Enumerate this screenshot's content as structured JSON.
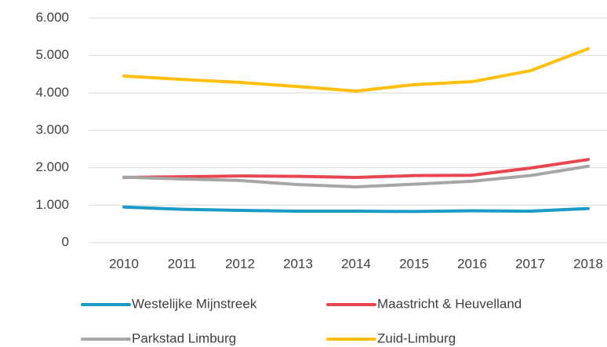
{
  "chart_data": {
    "type": "line",
    "categories": [
      "2010",
      "2011",
      "2012",
      "2013",
      "2014",
      "2015",
      "2016",
      "2017",
      "2018"
    ],
    "series": [
      {
        "name": "Westelijke Mijnstreek",
        "color": "#1a9bc7",
        "values": [
          950,
          890,
          860,
          840,
          840,
          830,
          850,
          840,
          910
        ]
      },
      {
        "name": "Maastricht & Heuvelland",
        "color": "#e84651",
        "values": [
          1740,
          1760,
          1780,
          1770,
          1740,
          1790,
          1800,
          1990,
          2220
        ]
      },
      {
        "name": "Parkstad Limburg",
        "color": "#a6a6a6",
        "values": [
          1750,
          1700,
          1660,
          1550,
          1490,
          1560,
          1640,
          1790,
          2040
        ]
      },
      {
        "name": "Zuid-Limburg",
        "color": "#fdc00e",
        "values": [
          4450,
          4360,
          4280,
          4170,
          4050,
          4220,
          4300,
          4590,
          5180
        ]
      }
    ],
    "ylim": [
      0,
      6000
    ],
    "yticks": [
      0,
      {
        "value": 1000,
        "label": "1.000"
      },
      {
        "value": 2000,
        "label": "2.000"
      },
      {
        "value": 3000,
        "label": "3.000"
      },
      {
        "value": 4000,
        "label": "4.000"
      },
      {
        "value": 5000,
        "label": "5.000"
      },
      {
        "value": 6000,
        "label": "6.000"
      }
    ],
    "grid": true,
    "legend": "bottom"
  }
}
